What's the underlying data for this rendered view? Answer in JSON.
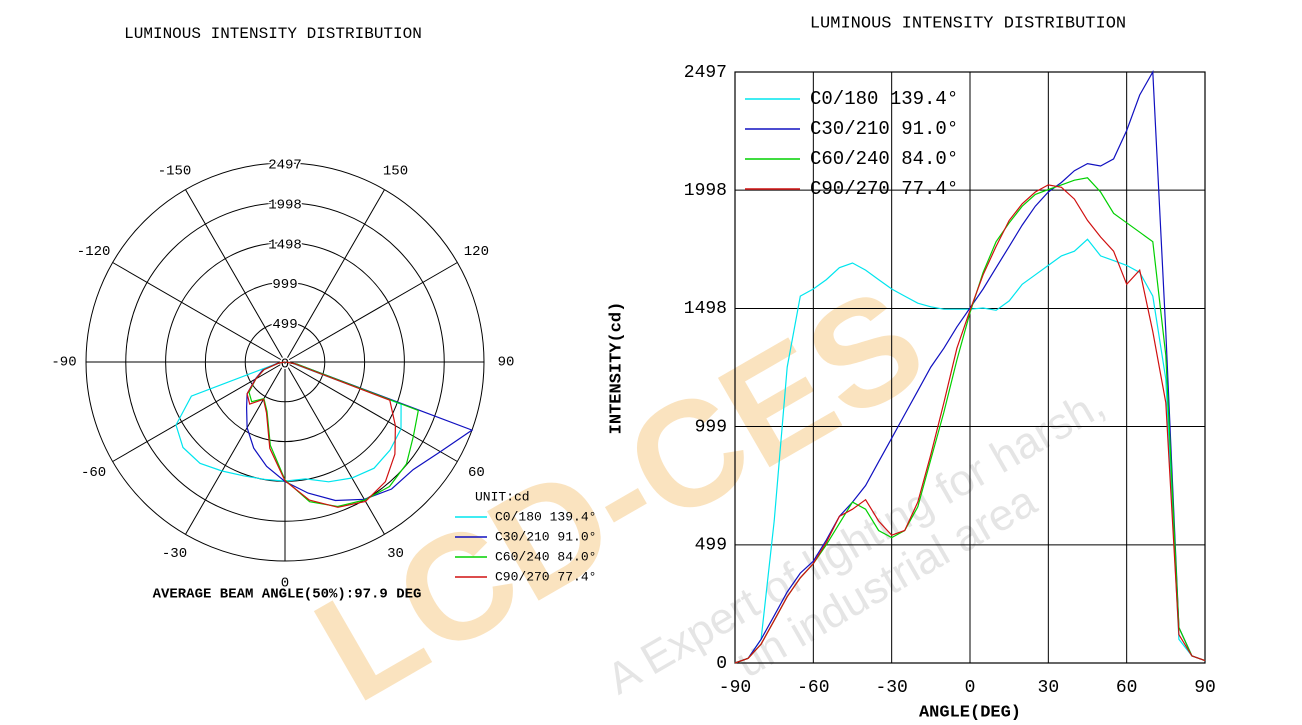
{
  "watermark": [
    "LCD-CES",
    "A Expert of lighting for harsh,",
    "un industrial area"
  ],
  "chart_data": [
    {
      "type": "polar",
      "title": "LUMINOUS INTENSITY DISTRIBUTION",
      "unit_label": "UNIT:cd",
      "footnote": "AVERAGE BEAM ANGLE(50%):97.9 DEG",
      "ylim": [
        0,
        2497
      ],
      "yticks": [
        0,
        499,
        999,
        1498,
        1998,
        2497
      ],
      "xticks": [
        -150,
        -120,
        -90,
        -60,
        -30,
        0,
        30,
        60,
        90,
        120,
        150
      ],
      "x": [
        -90,
        -80,
        -70,
        -60,
        -50,
        -40,
        -30,
        -20,
        -10,
        0,
        10,
        20,
        30,
        40,
        50,
        60,
        70,
        80,
        90
      ],
      "series": [
        {
          "name": "C0/180 139.4°",
          "color": "#00e5ee",
          "values": [
            0,
            100,
            1250,
            1580,
            1670,
            1660,
            1580,
            1520,
            1495,
            1495,
            1490,
            1600,
            1680,
            1740,
            1720,
            1680,
            1550,
            100,
            10
          ]
        },
        {
          "name": "C30/210 91.0°",
          "color": "#1010c0",
          "values": [
            0,
            100,
            300,
            430,
            620,
            750,
            950,
            1150,
            1330,
            1500,
            1670,
            1850,
            1990,
            2080,
            2100,
            2250,
            2497,
            150,
            10
          ]
        },
        {
          "name": "C60/240 84.0°",
          "color": "#00d000",
          "values": [
            0,
            80,
            280,
            420,
            590,
            650,
            530,
            660,
            1060,
            1480,
            1780,
            1930,
            2000,
            2040,
            1990,
            1860,
            1780,
            150,
            10
          ]
        },
        {
          "name": "C90/270 77.4°",
          "color": "#d01010",
          "values": [
            0,
            80,
            280,
            420,
            620,
            690,
            540,
            680,
            1100,
            1490,
            1760,
            1940,
            2020,
            1960,
            1800,
            1600,
            1400,
            120,
            10
          ]
        }
      ]
    },
    {
      "type": "line",
      "title": "LUMINOUS INTENSITY DISTRIBUTION",
      "x_label": "ANGLE(DEG)",
      "y_label": "INTENSITY(cd)",
      "grid": true,
      "xlim": [
        -90,
        90
      ],
      "xticks": [
        -90,
        -60,
        -30,
        0,
        30,
        60,
        90
      ],
      "ylim": [
        0,
        2497
      ],
      "yticks": [
        0,
        499,
        999,
        1498,
        1998,
        2497
      ],
      "x": [
        -90,
        -85,
        -80,
        -75,
        -70,
        -65,
        -60,
        -55,
        -50,
        -45,
        -40,
        -35,
        -30,
        -25,
        -20,
        -15,
        -10,
        -5,
        0,
        5,
        10,
        15,
        20,
        25,
        30,
        35,
        40,
        45,
        50,
        55,
        60,
        65,
        70,
        75,
        80,
        85,
        90
      ],
      "series": [
        {
          "name": "C0/180 139.4°",
          "color": "#00e5ee",
          "values": [
            0,
            20,
            100,
            600,
            1250,
            1550,
            1580,
            1620,
            1670,
            1690,
            1660,
            1620,
            1580,
            1550,
            1520,
            1505,
            1495,
            1495,
            1495,
            1500,
            1490,
            1530,
            1600,
            1640,
            1680,
            1720,
            1740,
            1790,
            1720,
            1700,
            1680,
            1650,
            1550,
            1200,
            100,
            30,
            10
          ]
        },
        {
          "name": "C30/210 91.0°",
          "color": "#1010c0",
          "values": [
            0,
            20,
            100,
            200,
            300,
            380,
            430,
            520,
            620,
            680,
            750,
            850,
            950,
            1050,
            1150,
            1250,
            1330,
            1420,
            1500,
            1580,
            1670,
            1760,
            1850,
            1930,
            1990,
            2030,
            2080,
            2110,
            2100,
            2130,
            2250,
            2400,
            2497,
            1400,
            150,
            30,
            10
          ]
        },
        {
          "name": "C60/240 84.0°",
          "color": "#00d000",
          "values": [
            0,
            20,
            80,
            180,
            280,
            360,
            420,
            500,
            590,
            680,
            650,
            560,
            530,
            560,
            660,
            860,
            1060,
            1280,
            1480,
            1650,
            1780,
            1860,
            1930,
            1980,
            2000,
            2020,
            2040,
            2050,
            1990,
            1900,
            1860,
            1820,
            1780,
            1300,
            150,
            30,
            10
          ]
        },
        {
          "name": "C90/270 77.4°",
          "color": "#d01010",
          "values": [
            0,
            20,
            80,
            180,
            280,
            360,
            420,
            510,
            620,
            650,
            690,
            600,
            540,
            560,
            680,
            880,
            1100,
            1330,
            1490,
            1640,
            1760,
            1870,
            1940,
            1990,
            2020,
            2010,
            1960,
            1870,
            1800,
            1740,
            1600,
            1660,
            1400,
            1100,
            120,
            30,
            10
          ]
        }
      ]
    }
  ]
}
